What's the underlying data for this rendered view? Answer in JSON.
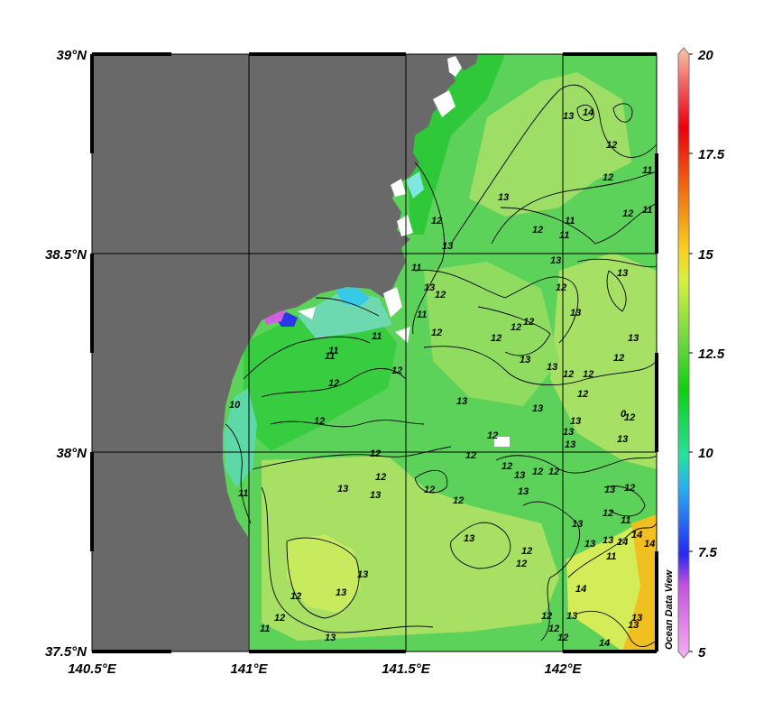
{
  "map": {
    "lat_labels": [
      "39°N",
      "38.5°N",
      "38°N",
      "37.5°N"
    ],
    "lon_labels": [
      "140.5°E",
      "141°E",
      "141.5°E",
      "142°E"
    ],
    "contour_labels": [
      "13",
      "12",
      "12",
      "11",
      "13",
      "12",
      "11",
      "11",
      "12",
      "13",
      "11",
      "12",
      "11",
      "13",
      "12",
      "13",
      "13",
      "12",
      "11",
      "11",
      "12",
      "12",
      "13",
      "12",
      "12",
      "13",
      "13",
      "12",
      "12",
      "12",
      "13",
      "12",
      "12",
      "11",
      "13",
      "12",
      "13",
      "12",
      "12",
      "13",
      "12",
      "12",
      "11",
      "13",
      "12",
      "13",
      "13",
      "12",
      "13",
      "12",
      "13",
      "12",
      "13",
      "12",
      "12",
      "12",
      "13",
      "13",
      "13",
      "12",
      "11",
      "12",
      "13",
      "13",
      "13",
      "14",
      "14",
      "14",
      "13",
      "14",
      "11",
      "12",
      "10",
      "0",
      "11",
      "11",
      "12",
      "12",
      "13",
      "12",
      "13",
      "12",
      "13",
      "12",
      "14",
      "13",
      "13",
      "12",
      "14"
    ],
    "colors": {
      "land": "#696969",
      "ocean_base": "#5cd25a",
      "warm_patch": "#c9ea5c",
      "cold_patch": "#7ed8c0",
      "frame": "#000000"
    }
  },
  "colorbar": {
    "labels": [
      "20",
      "17.5",
      "15",
      "12.5",
      "10",
      "7.5",
      "5"
    ],
    "min": 5,
    "max": 20,
    "stops": [
      "#f4b0f0",
      "#c050e0",
      "#2828f0",
      "#28b0f0",
      "#28e080",
      "#10d010",
      "#8ee040",
      "#f0f040",
      "#f8b010",
      "#f03010",
      "#e80010",
      "#f8c0a0"
    ],
    "watermark": "Ocean Data View"
  }
}
